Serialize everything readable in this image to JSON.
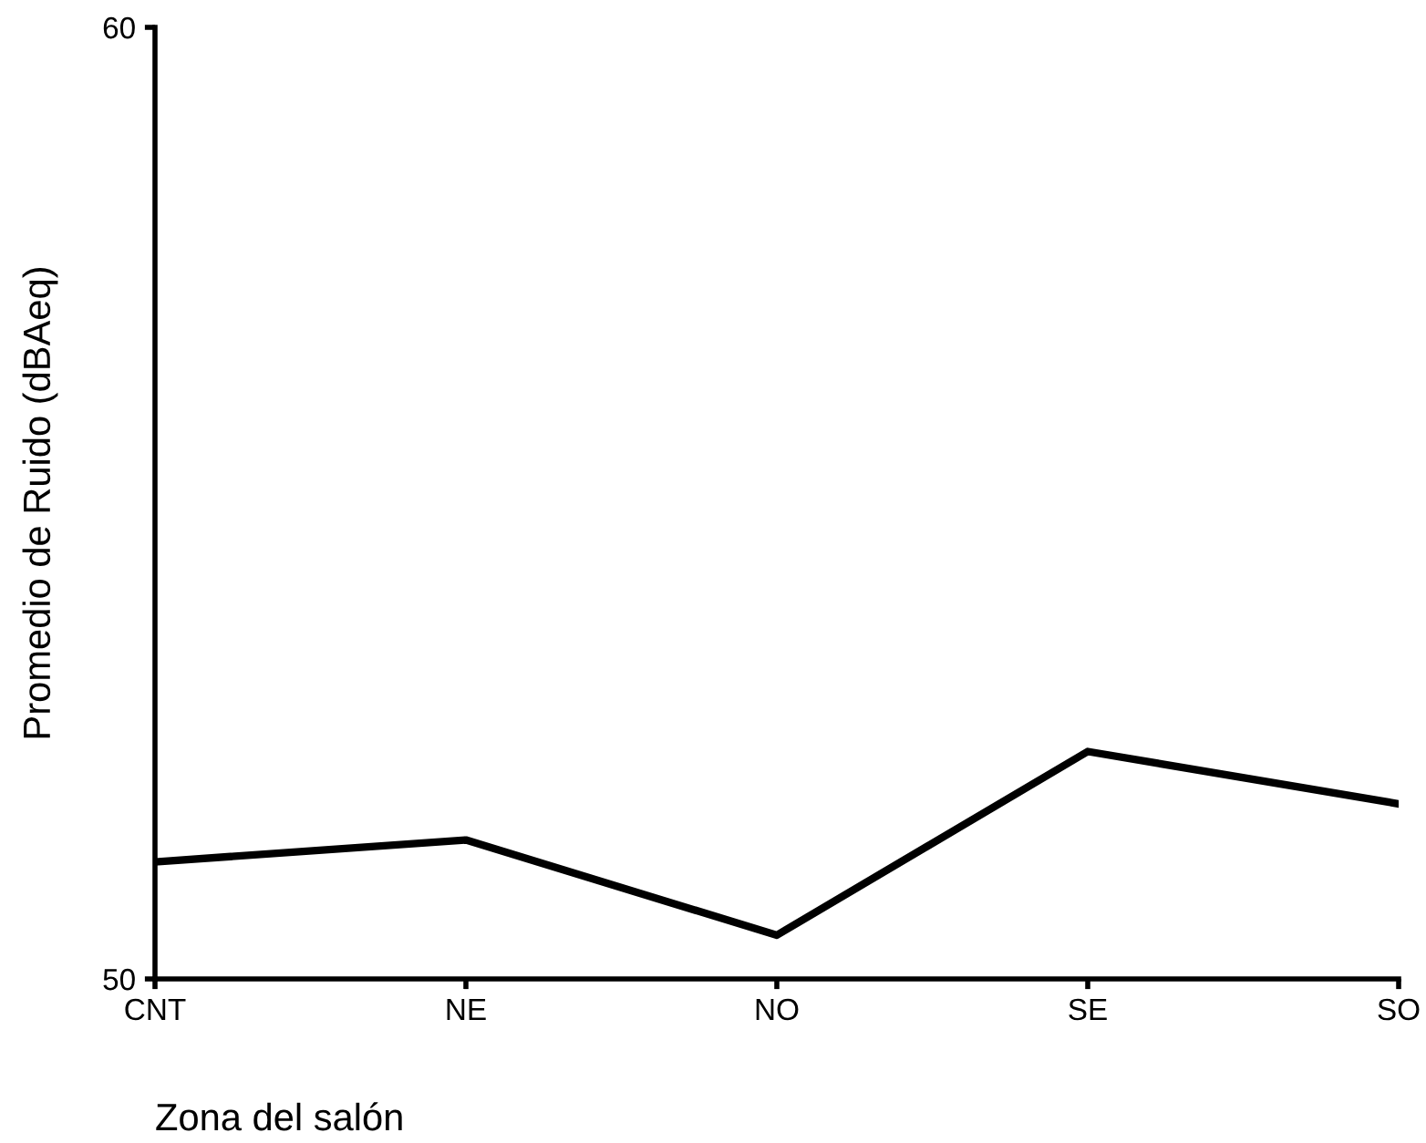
{
  "chart_data": {
    "type": "line",
    "xlabel": "Zona del salón",
    "ylabel": "Promedio de Ruido (dBAeq)",
    "categories": [
      "CNT",
      "NE",
      "NO",
      "SE",
      "SO"
    ],
    "series": [
      {
        "color": "#000000",
        "values": [
          51.23,
          51.46,
          50.46,
          52.39,
          51.84
        ]
      }
    ],
    "ylim": [
      50,
      60
    ],
    "yticks": [
      50,
      60
    ],
    "grid": false,
    "legend": false,
    "marker": "none",
    "line_style": "solid"
  }
}
